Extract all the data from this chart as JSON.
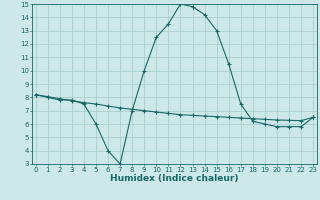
{
  "xlabel": "Humidex (Indice chaleur)",
  "bg_color": "#cce8e8",
  "grid_color": "#aacece",
  "line_color": "#1a6868",
  "x_values": [
    0,
    1,
    2,
    3,
    4,
    5,
    6,
    7,
    8,
    9,
    10,
    11,
    12,
    13,
    14,
    15,
    16,
    17,
    18,
    19,
    20,
    21,
    22,
    23
  ],
  "line1_y": [
    8.2,
    8.0,
    7.8,
    7.8,
    7.5,
    6.0,
    4.0,
    3.0,
    7.0,
    10.0,
    12.5,
    13.5,
    15.0,
    14.8,
    14.2,
    13.0,
    10.5,
    7.5,
    6.2,
    6.0,
    5.8,
    5.8,
    5.8,
    6.5
  ],
  "line2_y": [
    8.2,
    8.05,
    7.9,
    7.75,
    7.6,
    7.5,
    7.35,
    7.2,
    7.1,
    7.0,
    6.9,
    6.8,
    6.7,
    6.65,
    6.6,
    6.55,
    6.5,
    6.45,
    6.4,
    6.35,
    6.3,
    6.28,
    6.25,
    6.5
  ],
  "ylim_min": 3,
  "ylim_max": 15,
  "xlim_min": 0,
  "xlim_max": 23,
  "yticks": [
    3,
    4,
    5,
    6,
    7,
    8,
    9,
    10,
    11,
    12,
    13,
    14,
    15
  ],
  "xticks": [
    0,
    1,
    2,
    3,
    4,
    5,
    6,
    7,
    8,
    9,
    10,
    11,
    12,
    13,
    14,
    15,
    16,
    17,
    18,
    19,
    20,
    21,
    22,
    23
  ],
  "tick_fontsize": 5.0,
  "label_fontsize": 6.5
}
